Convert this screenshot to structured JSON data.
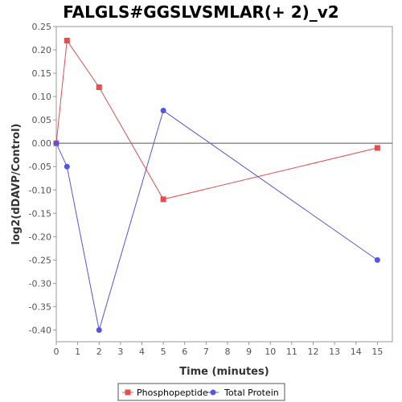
{
  "chart_data": {
    "type": "line",
    "title": "FALGLS#GGSLVSMLAR(+ 2)_v2",
    "xlabel": "Time (minutes)",
    "ylabel": "log2(dDAVP/Control)",
    "xlim": [
      0,
      15.7
    ],
    "ylim": [
      -0.425,
      0.25
    ],
    "x_ticks": [
      0,
      1,
      2,
      3,
      4,
      5,
      6,
      7,
      8,
      9,
      10,
      11,
      12,
      13,
      14,
      15
    ],
    "y_ticks": [
      0.25,
      0.2,
      0.15,
      0.1,
      0.05,
      0.0,
      -0.05,
      -0.1,
      -0.15,
      -0.2,
      -0.25,
      -0.3,
      -0.35,
      -0.4
    ],
    "y_tick_labels": [
      "0.25",
      "0.20",
      "0.15",
      "0.10",
      "0.05",
      "0.00",
      "-0.05",
      "-0.10",
      "-0.15",
      "-0.20",
      "-0.25",
      "-0.30",
      "-0.35",
      "-0.40"
    ],
    "zero_line": true,
    "grid": false,
    "legend_position": "bottom",
    "series": [
      {
        "name": "Phosphopeptide",
        "color": "#e05050",
        "marker": "square",
        "x": [
          0,
          0.5,
          2,
          5,
          15
        ],
        "y": [
          0.0,
          0.22,
          0.12,
          -0.12,
          -0.01
        ]
      },
      {
        "name": "Total Protein",
        "color": "#5555e0",
        "marker": "circle",
        "x": [
          0,
          0.5,
          2,
          5,
          15
        ],
        "y": [
          0.0,
          -0.05,
          -0.4,
          0.07,
          -0.25
        ]
      }
    ]
  }
}
